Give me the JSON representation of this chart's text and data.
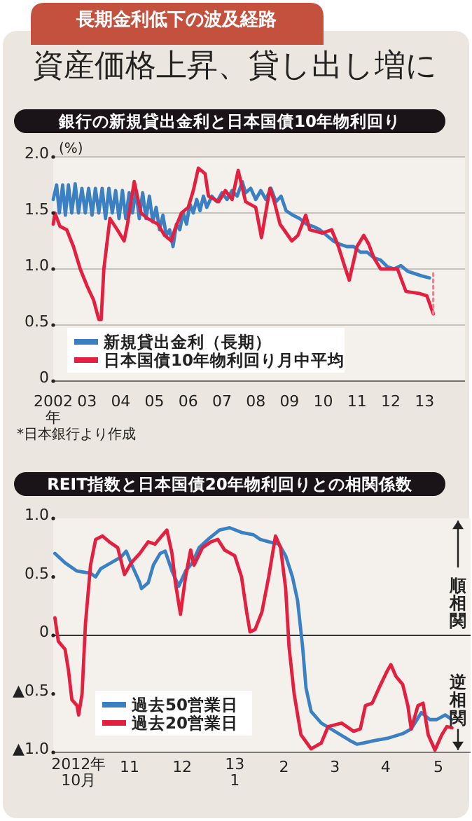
{
  "chart_data": [
    {
      "type": "line",
      "title": "銀行の新規貸出金利と日本国債10年物利回り",
      "ylabel": "(%)",
      "annotations": [
        "長期金利低下の波及経路",
        "資産価格上昇、貸し出し増に",
        "*日本銀行より作成"
      ],
      "xlim": [
        2002,
        2014.2
      ],
      "xticks": [
        {
          "value": 2002,
          "label": "2002\n年"
        },
        {
          "value": 2003,
          "label": "03"
        },
        {
          "value": 2004,
          "label": "04"
        },
        {
          "value": 2005,
          "label": "05"
        },
        {
          "value": 2006,
          "label": "06"
        },
        {
          "value": 2007,
          "label": "07"
        },
        {
          "value": 2008,
          "label": "08"
        },
        {
          "value": 2009,
          "label": "09"
        },
        {
          "value": 2010,
          "label": "10"
        },
        {
          "value": 2011,
          "label": "11"
        },
        {
          "value": 2012,
          "label": "12"
        },
        {
          "value": 2013,
          "label": "13"
        }
      ],
      "ylim": [
        0,
        2
      ],
      "yticks": [
        {
          "value": 0,
          "label": "0"
        },
        {
          "value": 0.5,
          "label": "0.5"
        },
        {
          "value": 1,
          "label": "1.0"
        },
        {
          "value": 1.5,
          "label": "1.5"
        },
        {
          "value": 2,
          "label": "2.0"
        }
      ],
      "grid": "y",
      "legend": "bottom left",
      "series": [
        {
          "name": "新規貸出金利（長期）",
          "color": "#3a80c2",
          "x": [
            2002.0,
            2002.1,
            2002.18,
            2002.28,
            2002.36,
            2002.45,
            2002.55,
            2002.65,
            2002.75,
            2002.85,
            2002.95,
            2003.05,
            2003.15,
            2003.25,
            2003.35,
            2003.45,
            2003.55,
            2003.65,
            2003.75,
            2003.85,
            2003.95,
            2004.05,
            2004.15,
            2004.25,
            2004.35,
            2004.45,
            2004.55,
            2004.65,
            2004.75,
            2004.85,
            2004.95,
            2005.05,
            2005.15,
            2005.25,
            2005.35,
            2005.45,
            2005.55,
            2005.65,
            2005.75,
            2005.85,
            2005.95,
            2006.05,
            2006.15,
            2006.25,
            2006.35,
            2006.45,
            2006.55,
            2006.7,
            2006.85,
            2007.0,
            2007.15,
            2007.3,
            2007.45,
            2007.6,
            2007.7,
            2007.85,
            2008.0,
            2008.15,
            2008.3,
            2008.45,
            2008.6,
            2008.75,
            2008.9,
            2009.1,
            2009.3,
            2009.5,
            2009.7,
            2009.9,
            2010.1,
            2010.3,
            2010.5,
            2010.7,
            2010.9,
            2011.1,
            2011.3,
            2011.5,
            2011.7,
            2011.9,
            2012.1,
            2012.3,
            2012.5,
            2012.7,
            2012.9,
            2013.15
          ],
          "values": [
            1.62,
            1.75,
            1.5,
            1.75,
            1.48,
            1.75,
            1.5,
            1.76,
            1.5,
            1.72,
            1.5,
            1.72,
            1.48,
            1.72,
            1.5,
            1.72,
            1.45,
            1.72,
            1.5,
            1.7,
            1.45,
            1.7,
            1.45,
            1.68,
            1.5,
            1.7,
            1.45,
            1.68,
            1.45,
            1.65,
            1.42,
            1.55,
            1.35,
            1.48,
            1.3,
            1.35,
            1.2,
            1.4,
            1.35,
            1.5,
            1.4,
            1.58,
            1.5,
            1.62,
            1.52,
            1.65,
            1.55,
            1.65,
            1.6,
            1.68,
            1.62,
            1.7,
            1.65,
            1.78,
            1.68,
            1.72,
            1.62,
            1.7,
            1.62,
            1.72,
            1.6,
            1.65,
            1.52,
            1.48,
            1.45,
            1.4,
            1.38,
            1.35,
            1.3,
            1.25,
            1.22,
            1.2,
            1.2,
            1.15,
            1.15,
            1.1,
            1.08,
            1.02,
            1.0,
            1.03,
            0.98,
            0.96,
            0.94,
            0.92
          ]
        },
        {
          "name": "日本国債10年物利回り月中平均",
          "color": "#e3203f",
          "x": [
            2002.0,
            2002.05,
            2002.2,
            2002.4,
            2002.6,
            2002.8,
            2003.0,
            2003.2,
            2003.35,
            2003.42,
            2003.5,
            2003.68,
            2003.9,
            2004.1,
            2004.2,
            2004.4,
            2004.6,
            2004.8,
            2005.1,
            2005.3,
            2005.5,
            2005.6,
            2005.8,
            2006.0,
            2006.15,
            2006.3,
            2006.5,
            2006.6,
            2006.9,
            2007.1,
            2007.3,
            2007.48,
            2007.7,
            2008.0,
            2008.17,
            2008.42,
            2008.55,
            2008.72,
            2009.07,
            2009.25,
            2009.48,
            2009.6,
            2009.97,
            2010.25,
            2010.45,
            2010.66,
            2010.77,
            2011.0,
            2011.2,
            2011.35,
            2011.5,
            2011.7,
            2012.2,
            2012.45,
            2012.87,
            2013.07,
            2013.26
          ],
          "values": [
            1.4,
            1.5,
            1.38,
            1.35,
            1.2,
            1.0,
            0.85,
            0.72,
            0.55,
            0.55,
            1.0,
            1.45,
            1.35,
            1.25,
            1.4,
            1.78,
            1.5,
            1.45,
            1.4,
            1.3,
            1.25,
            1.35,
            1.5,
            1.55,
            1.7,
            1.9,
            1.85,
            1.65,
            1.6,
            1.7,
            1.62,
            1.88,
            1.6,
            1.55,
            1.28,
            1.72,
            1.6,
            1.4,
            1.25,
            1.3,
            1.48,
            1.35,
            1.32,
            1.35,
            1.2,
            1.0,
            0.9,
            1.2,
            1.3,
            1.22,
            1.1,
            1.0,
            1.0,
            0.8,
            0.78,
            0.76,
            0.6
          ]
        },
        {
          "color": "#f08090",
          "line_style": "dotted",
          "x": [
            2013.26,
            2013.26
          ],
          "values": [
            0.6,
            0.98
          ]
        }
      ]
    },
    {
      "type": "line",
      "title": "REIT指数と日本国債20年物利回りとの相関係数",
      "annotations": [
        "順相関",
        "逆相関"
      ],
      "xlim": [
        "2012-10-01",
        "2013-06-04"
      ],
      "xticks": [
        {
          "value": "2012-10-16",
          "label": "2012年\n10月"
        },
        {
          "value": "2012-11-15",
          "label": "11"
        },
        {
          "value": "2012-12-16",
          "label": "12"
        },
        {
          "value": "2013-01-16",
          "label": "13\n1"
        },
        {
          "value": "2013-02-14",
          "label": "2"
        },
        {
          "value": "2013-03-16",
          "label": "3"
        },
        {
          "value": "2013-04-15",
          "label": "4"
        },
        {
          "value": "2013-05-16",
          "label": "5"
        }
      ],
      "ylim": [
        -1,
        1
      ],
      "yticks": [
        {
          "value": -1,
          "label": "▲1.0"
        },
        {
          "value": -0.5,
          "label": "▲0.5"
        },
        {
          "value": 0,
          "label": "0"
        },
        {
          "value": 0.5,
          "label": "0.5"
        },
        {
          "value": 1,
          "label": "1.0"
        }
      ],
      "ref_lines": [
        {
          "axis": "y",
          "value": 0,
          "color": "#333333"
        }
      ],
      "legend": "bottom left",
      "series": [
        {
          "name": "過去50営業日",
          "color": "#3a80c2",
          "x": [
            "2012-10-02",
            "2012-10-08",
            "2012-10-15",
            "2012-10-23",
            "2012-10-26",
            "2012-10-29",
            "2012-11-04",
            "2012-11-10",
            "2012-11-13",
            "2012-11-17",
            "2012-11-21",
            "2012-11-22",
            "2012-11-26",
            "2012-11-29",
            "2012-12-03",
            "2012-12-06",
            "2012-12-10",
            "2012-12-14",
            "2012-12-18",
            "2012-12-22",
            "2012-12-26",
            "2013-01-01",
            "2013-01-07",
            "2013-01-13",
            "2013-01-20",
            "2013-01-27",
            "2013-01-31",
            "2013-02-05",
            "2013-02-11",
            "2013-02-15",
            "2013-02-19",
            "2013-02-22",
            "2013-02-25",
            "2013-02-27",
            "2013-03-02",
            "2013-03-08",
            "2013-03-16",
            "2013-03-25",
            "2013-03-29",
            "2013-04-02",
            "2013-04-08",
            "2013-04-16",
            "2013-04-25",
            "2013-04-30",
            "2013-05-06",
            "2013-05-11",
            "2013-05-15",
            "2013-05-20",
            "2013-05-24"
          ],
          "values": [
            0.7,
            0.62,
            0.55,
            0.53,
            0.5,
            0.57,
            0.62,
            0.67,
            0.72,
            0.58,
            0.45,
            0.4,
            0.45,
            0.6,
            0.7,
            0.72,
            0.55,
            0.42,
            0.55,
            0.62,
            0.75,
            0.83,
            0.9,
            0.92,
            0.88,
            0.86,
            0.82,
            0.8,
            0.78,
            0.68,
            0.5,
            0.3,
            -0.1,
            -0.45,
            -0.65,
            -0.75,
            -0.82,
            -0.9,
            -0.93,
            -0.92,
            -0.9,
            -0.88,
            -0.84,
            -0.8,
            -0.66,
            -0.72,
            -0.72,
            -0.68,
            -0.72
          ]
        },
        {
          "name": "過去20営業日",
          "color": "#e3203f",
          "x": [
            "2012-10-02",
            "2012-10-04",
            "2012-10-08",
            "2012-10-10",
            "2012-10-12",
            "2012-10-15",
            "2012-10-16",
            "2012-10-18",
            "2012-10-20",
            "2012-10-23",
            "2012-10-26",
            "2012-10-30",
            "2012-11-03",
            "2012-11-08",
            "2012-11-12",
            "2012-11-16",
            "2012-11-21",
            "2012-11-26",
            "2012-11-30",
            "2012-12-04",
            "2012-12-07",
            "2012-12-10",
            "2012-12-12",
            "2012-12-15",
            "2012-12-18",
            "2012-12-21",
            "2012-12-23",
            "2012-12-28",
            "2013-01-02",
            "2013-01-06",
            "2013-01-10",
            "2013-01-16",
            "2013-01-20",
            "2013-01-23",
            "2013-01-25",
            "2013-01-28",
            "2013-02-01",
            "2013-02-05",
            "2013-02-09",
            "2013-02-12",
            "2013-02-15",
            "2013-02-17",
            "2013-02-20",
            "2013-02-24",
            "2013-03-02",
            "2013-03-08",
            "2013-03-12",
            "2013-03-20",
            "2013-03-27",
            "2013-03-31",
            "2013-04-03",
            "2013-04-07",
            "2013-04-11",
            "2013-04-16",
            "2013-04-18",
            "2013-04-21",
            "2013-04-25",
            "2013-04-28",
            "2013-04-30",
            "2013-05-04",
            "2013-05-07",
            "2013-05-10",
            "2013-05-14",
            "2013-05-18",
            "2013-05-21",
            "2013-05-24"
          ],
          "values": [
            0.15,
            -0.05,
            -0.12,
            -0.3,
            -0.55,
            -0.6,
            -0.68,
            -0.5,
            0.1,
            0.6,
            0.82,
            0.85,
            0.8,
            0.75,
            0.52,
            0.62,
            0.7,
            0.8,
            0.78,
            0.85,
            0.9,
            0.7,
            0.45,
            0.18,
            0.5,
            0.73,
            0.6,
            0.75,
            0.8,
            0.82,
            0.73,
            0.68,
            0.5,
            0.2,
            0.03,
            0.05,
            0.2,
            0.5,
            0.85,
            0.75,
            0.4,
            -0.1,
            -0.5,
            -0.85,
            -0.97,
            -0.92,
            -0.78,
            -0.75,
            -0.82,
            -0.8,
            -0.6,
            -0.58,
            -0.45,
            -0.3,
            -0.25,
            -0.35,
            -0.42,
            -0.6,
            -0.8,
            -0.6,
            -0.58,
            -0.85,
            -0.98,
            -0.85,
            -0.78,
            -0.79
          ]
        }
      ]
    }
  ]
}
